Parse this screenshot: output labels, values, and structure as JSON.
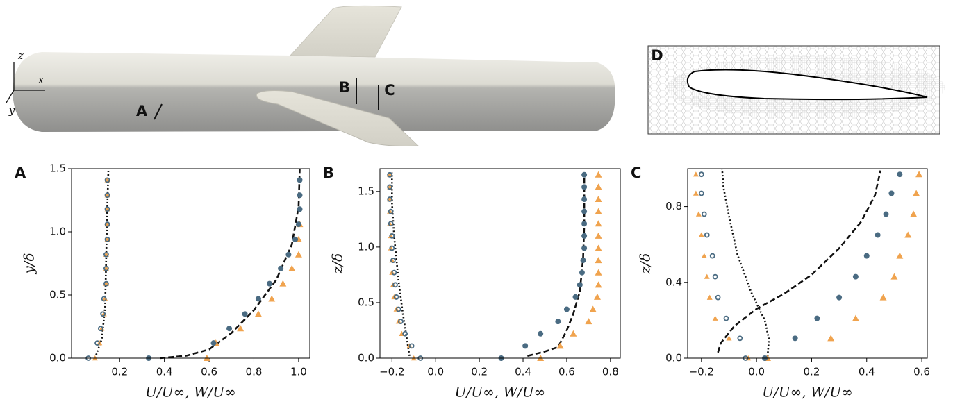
{
  "illustration": {
    "section_labels": [
      "A",
      "B",
      "C"
    ],
    "axes": [
      "x",
      "y",
      "z"
    ],
    "inset_label": "D"
  },
  "chart_data": [
    {
      "type": "scatter",
      "panel": "A",
      "xlabel": "U/U∞, W/U∞",
      "ylabel": "y/δ",
      "xlim": [
        -0.015,
        1.05
      ],
      "ylim": [
        0,
        1.5
      ],
      "xticks": [
        0.2,
        0.4,
        0.6,
        0.8,
        {
          "value": 1,
          "label": "1.0"
        }
      ],
      "yticks": [
        {
          "value": 0,
          "label": "0.0"
        },
        0.5,
        {
          "value": 1,
          "label": "1.0"
        },
        1.5
      ],
      "series": [
        {
          "style": "dashed",
          "color": "#111111",
          "x": [
            0.38,
            0.5,
            0.6,
            0.7,
            0.8,
            0.9,
            0.97,
            1.0,
            1.005
          ],
          "y": [
            0,
            0.02,
            0.07,
            0.2,
            0.38,
            0.62,
            0.9,
            1.2,
            1.5
          ]
        },
        {
          "style": "dotted",
          "color": "#111111",
          "x": [
            0.09,
            0.12,
            0.135,
            0.14,
            0.145,
            0.15
          ],
          "y": [
            0,
            0.15,
            0.4,
            0.8,
            1.2,
            1.5
          ]
        },
        {
          "style": "triangle",
          "color": "#f0a34e",
          "x": [
            0.59,
            0.63,
            0.74,
            0.82,
            0.88,
            0.93,
            0.97,
            1.0,
            1.0,
            1.005
          ],
          "y": [
            0,
            0.12,
            0.235,
            0.35,
            0.47,
            0.59,
            0.71,
            0.82,
            0.94,
            1.06
          ]
        },
        {
          "style": "filled-circle",
          "color": "#4a6b82",
          "x": [
            0.33,
            0.62,
            0.69,
            0.76,
            0.82,
            0.87,
            0.92,
            0.955,
            0.985,
            1.0,
            1.005,
            1.005,
            1.005
          ],
          "y": [
            0,
            0.12,
            0.235,
            0.35,
            0.47,
            0.59,
            0.71,
            0.82,
            0.94,
            1.06,
            1.18,
            1.29,
            1.41
          ]
        },
        {
          "style": "small-triangle",
          "color": "#f0a34e",
          "x": [
            0.09,
            0.11,
            0.12,
            0.13,
            0.135,
            0.14,
            0.14,
            0.14,
            0.145,
            0.145,
            0.145,
            0.145,
            0.145
          ],
          "y": [
            0,
            0.12,
            0.235,
            0.35,
            0.47,
            0.59,
            0.71,
            0.82,
            0.94,
            1.06,
            1.18,
            1.29,
            1.41
          ]
        },
        {
          "style": "open-circle",
          "color": "#4a6b82",
          "x": [
            0.06,
            0.1,
            0.115,
            0.125,
            0.13,
            0.14,
            0.14,
            0.14,
            0.145,
            0.145,
            0.145,
            0.145,
            0.145
          ],
          "y": [
            0,
            0.12,
            0.235,
            0.35,
            0.47,
            0.59,
            0.71,
            0.82,
            0.94,
            1.06,
            1.18,
            1.29,
            1.41
          ]
        }
      ]
    },
    {
      "type": "scatter",
      "panel": "B",
      "xlabel": "U/U∞, W/U∞",
      "ylabel": "z/δ",
      "xlim": [
        -0.255,
        0.845
      ],
      "ylim": [
        0,
        1.705
      ],
      "xticks": [
        {
          "value": -0.2,
          "label": "−0.2"
        },
        {
          "value": 0,
          "label": "0.0"
        },
        0.2,
        0.4,
        0.6,
        0.8
      ],
      "yticks": [
        {
          "value": 0,
          "label": "0.0"
        },
        0.5,
        {
          "value": 1,
          "label": "1.0"
        },
        1.5
      ],
      "series": [
        {
          "style": "dashed",
          "color": "#111111",
          "x": [
            0.42,
            0.5,
            0.56,
            0.6,
            0.63,
            0.66,
            0.675,
            0.68,
            0.68
          ],
          "y": [
            0.02,
            0.06,
            0.1,
            0.25,
            0.4,
            0.6,
            0.9,
            1.2,
            1.67
          ]
        },
        {
          "style": "dotted",
          "color": "#111111",
          "x": [
            -0.12,
            -0.13,
            -0.15,
            -0.17,
            -0.19,
            -0.2,
            -0.2
          ],
          "y": [
            0.02,
            0.15,
            0.4,
            0.7,
            1.1,
            1.4,
            1.67
          ]
        },
        {
          "style": "triangle",
          "color": "#f0a34e",
          "x": [
            0.48,
            0.57,
            0.63,
            0.7,
            0.72,
            0.74,
            0.745,
            0.745,
            0.745,
            0.745,
            0.745,
            0.745,
            0.745,
            0.745,
            0.745,
            0.745
          ],
          "y": [
            0,
            0.11,
            0.22,
            0.33,
            0.44,
            0.55,
            0.66,
            0.77,
            0.88,
            0.99,
            1.1,
            1.21,
            1.32,
            1.43,
            1.54,
            1.65
          ]
        },
        {
          "style": "filled-circle",
          "color": "#4a6b82",
          "x": [
            0.3,
            0.41,
            0.48,
            0.56,
            0.6,
            0.64,
            0.66,
            0.67,
            0.675,
            0.68,
            0.68,
            0.68,
            0.68,
            0.68,
            0.68,
            0.68
          ],
          "y": [
            0,
            0.11,
            0.22,
            0.33,
            0.44,
            0.55,
            0.66,
            0.77,
            0.88,
            0.99,
            1.1,
            1.21,
            1.32,
            1.43,
            1.54,
            1.65
          ]
        },
        {
          "style": "small-triangle",
          "color": "#f0a34e",
          "x": [
            -0.1,
            -0.12,
            -0.155,
            -0.17,
            -0.18,
            -0.19,
            -0.195,
            -0.2,
            -0.2,
            -0.205,
            -0.205,
            -0.21,
            -0.21,
            -0.21,
            -0.21,
            -0.21
          ],
          "y": [
            0,
            0.11,
            0.22,
            0.33,
            0.44,
            0.55,
            0.66,
            0.77,
            0.88,
            0.99,
            1.1,
            1.21,
            1.32,
            1.43,
            1.54,
            1.65
          ]
        },
        {
          "style": "open-circle",
          "color": "#4a6b82",
          "x": [
            -0.07,
            -0.11,
            -0.14,
            -0.16,
            -0.17,
            -0.18,
            -0.185,
            -0.19,
            -0.195,
            -0.2,
            -0.2,
            -0.205,
            -0.205,
            -0.21,
            -0.21,
            -0.21
          ],
          "y": [
            0,
            0.11,
            0.22,
            0.33,
            0.44,
            0.55,
            0.66,
            0.77,
            0.88,
            0.99,
            1.1,
            1.21,
            1.32,
            1.43,
            1.54,
            1.65
          ]
        }
      ]
    },
    {
      "type": "scatter",
      "panel": "C",
      "xlabel": "U/U∞, W/U∞",
      "ylabel": "z/δ",
      "xlim": [
        -0.25,
        0.62
      ],
      "ylim": [
        0,
        1.0
      ],
      "xticks": [
        {
          "value": -0.2,
          "label": "−0.2"
        },
        {
          "value": 0,
          "label": "0.0"
        },
        0.2,
        0.4,
        0.6
      ],
      "yticks": [
        {
          "value": 0,
          "label": "0.0"
        },
        0.4,
        0.8
      ],
      "series": [
        {
          "style": "dashed",
          "color": "#111111",
          "x": [
            -0.14,
            -0.13,
            -0.08,
            0.0,
            0.1,
            0.2,
            0.3,
            0.38,
            0.43,
            0.45
          ],
          "y": [
            0.03,
            0.08,
            0.17,
            0.26,
            0.34,
            0.44,
            0.58,
            0.72,
            0.86,
            0.99
          ]
        },
        {
          "style": "dotted",
          "color": "#111111",
          "x": [
            0.04,
            0.045,
            0.03,
            -0.02,
            -0.07,
            -0.1,
            -0.12,
            -0.125
          ],
          "y": [
            0.01,
            0.1,
            0.2,
            0.35,
            0.55,
            0.75,
            0.9,
            1.0
          ]
        },
        {
          "style": "triangle",
          "color": "#f0a34e",
          "x": [
            0.04,
            0.27,
            0.36,
            0.46,
            0.5,
            0.52,
            0.55,
            0.57,
            0.58,
            0.59
          ],
          "y": [
            0,
            0.105,
            0.21,
            0.32,
            0.43,
            0.54,
            0.65,
            0.76,
            0.87,
            0.97
          ]
        },
        {
          "style": "filled-circle",
          "color": "#4a6b82",
          "x": [
            0.03,
            0.14,
            0.22,
            0.3,
            0.36,
            0.4,
            0.44,
            0.47,
            0.49,
            0.52
          ],
          "y": [
            0,
            0.105,
            0.21,
            0.32,
            0.43,
            0.54,
            0.65,
            0.76,
            0.87,
            0.97
          ]
        },
        {
          "style": "small-triangle",
          "color": "#f0a34e",
          "x": [
            -0.03,
            -0.1,
            -0.15,
            -0.17,
            -0.18,
            -0.19,
            -0.2,
            -0.21,
            -0.22,
            -0.22
          ],
          "y": [
            0,
            0.105,
            0.21,
            0.32,
            0.43,
            0.54,
            0.65,
            0.76,
            0.87,
            0.97
          ]
        },
        {
          "style": "open-circle",
          "color": "#4a6b82",
          "x": [
            -0.04,
            -0.06,
            -0.11,
            -0.14,
            -0.15,
            -0.16,
            -0.18,
            -0.19,
            -0.2,
            -0.2
          ],
          "y": [
            0,
            0.105,
            0.21,
            0.32,
            0.43,
            0.54,
            0.65,
            0.76,
            0.87,
            0.97
          ]
        }
      ]
    }
  ]
}
